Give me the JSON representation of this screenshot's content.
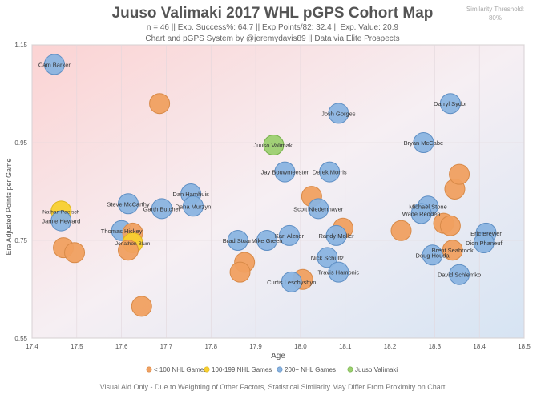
{
  "header": {
    "title": "Juuso Valimaki 2017 WHL pGPS Cohort Map",
    "stats": "n = 46 || Exp. Success%: 64.7 || Exp Points/82: 32.4 || Exp. Value: 20.9",
    "credit": "Chart and pGPS System by @jeremydavis89 || Data via Elite Prospects",
    "threshold_label": "Similarity Threshold:",
    "threshold_value": "80%"
  },
  "footer": "Visual Aid Only - Due to Weighting of Other Factors, Statistical Similarity May Differ From Proximity on Chart",
  "colors": {
    "lt100": "#f0a060",
    "g100_199": "#f8d030",
    "g200": "#8ab4e0",
    "valimaki": "#9cd070"
  },
  "chart_data": {
    "type": "scatter",
    "title": "Juuso Valimaki 2017 WHL pGPS Cohort Map",
    "xlabel": "Age",
    "ylabel": "Era Adjusted Points per Game",
    "xlim": [
      17.4,
      18.5
    ],
    "ylim": [
      0.55,
      1.15
    ],
    "xticks": [
      "17.4",
      "17.5",
      "17.6",
      "17.7",
      "17.8",
      "17.9",
      "18.0",
      "18.1",
      "18.2",
      "18.3",
      "18.4",
      "18.5"
    ],
    "yticks": [
      "0.55",
      "0.75",
      "0.95",
      "1.15"
    ],
    "legend": [
      {
        "key": "lt100",
        "label": "< 100 NHL Games"
      },
      {
        "key": "g100_199",
        "label": "100-199 NHL Games"
      },
      {
        "key": "g200",
        "label": "200+ NHL Games"
      },
      {
        "key": "valimaki",
        "label": "Juuso Valimaki"
      }
    ],
    "points": [
      {
        "name": "Cam Barker",
        "x": 17.45,
        "y": 1.11,
        "group": "g200"
      },
      {
        "name": "",
        "x": 17.685,
        "y": 1.03,
        "group": "lt100"
      },
      {
        "name": "Josh Gorges",
        "x": 18.085,
        "y": 1.01,
        "group": "g200"
      },
      {
        "name": "Darryl Sydor",
        "x": 18.335,
        "y": 1.03,
        "group": "g200"
      },
      {
        "name": "Juuso Valimaki",
        "x": 17.94,
        "y": 0.945,
        "group": "valimaki"
      },
      {
        "name": "Bryan McCabe",
        "x": 18.275,
        "y": 0.95,
        "group": "g200"
      },
      {
        "name": "Jay Bouwmeester",
        "x": 17.965,
        "y": 0.89,
        "group": "g200"
      },
      {
        "name": "Derek Morris",
        "x": 18.065,
        "y": 0.89,
        "group": "g200"
      },
      {
        "name": "",
        "x": 18.345,
        "y": 0.855,
        "group": "lt100"
      },
      {
        "name": "",
        "x": 18.355,
        "y": 0.885,
        "group": "lt100"
      },
      {
        "name": "",
        "x": 18.025,
        "y": 0.84,
        "group": "lt100"
      },
      {
        "name": "Dan Hamhuis",
        "x": 17.755,
        "y": 0.845,
        "group": "g200"
      },
      {
        "name": "Steve McCarthy",
        "x": 17.615,
        "y": 0.825,
        "group": "g200"
      },
      {
        "name": "Dana Murzyn",
        "x": 17.76,
        "y": 0.82,
        "group": "g200"
      },
      {
        "name": "Garth Butcher",
        "x": 17.69,
        "y": 0.815,
        "group": "g200"
      },
      {
        "name": "Nathan Paetsch",
        "x": 17.465,
        "y": 0.81,
        "group": "g100_199"
      },
      {
        "name": "Scott Niedermayer",
        "x": 18.04,
        "y": 0.815,
        "group": "g200"
      },
      {
        "name": "Michael Stone",
        "x": 18.285,
        "y": 0.82,
        "group": "g200"
      },
      {
        "name": "Wade Redden",
        "x": 18.27,
        "y": 0.805,
        "group": "g200"
      },
      {
        "name": "Jamie Heward",
        "x": 17.465,
        "y": 0.79,
        "group": "g200"
      },
      {
        "name": "",
        "x": 18.32,
        "y": 0.785,
        "group": "lt100"
      },
      {
        "name": "",
        "x": 18.335,
        "y": 0.78,
        "group": "lt100"
      },
      {
        "name": "",
        "x": 18.095,
        "y": 0.775,
        "group": "lt100"
      },
      {
        "name": "",
        "x": 18.225,
        "y": 0.77,
        "group": "lt100"
      },
      {
        "name": "Thomas Hickey",
        "x": 17.6,
        "y": 0.77,
        "group": "g200"
      },
      {
        "name": "",
        "x": 17.625,
        "y": 0.765,
        "group": "lt100"
      },
      {
        "name": "Randy Moller",
        "x": 18.08,
        "y": 0.76,
        "group": "g200"
      },
      {
        "name": "Karl Alzner",
        "x": 17.975,
        "y": 0.76,
        "group": "g200"
      },
      {
        "name": "Eric Brewer",
        "x": 18.415,
        "y": 0.765,
        "group": "g200"
      },
      {
        "name": "Brad Stuart",
        "x": 17.86,
        "y": 0.75,
        "group": "g200"
      },
      {
        "name": "Mike Green",
        "x": 17.925,
        "y": 0.75,
        "group": "g200"
      },
      {
        "name": "Jonathon Blum",
        "x": 17.625,
        "y": 0.745,
        "group": "g100_199"
      },
      {
        "name": "Dion Phaneuf",
        "x": 18.41,
        "y": 0.745,
        "group": "g200"
      },
      {
        "name": "",
        "x": 17.47,
        "y": 0.735,
        "group": "lt100"
      },
      {
        "name": "",
        "x": 17.495,
        "y": 0.725,
        "group": "lt100"
      },
      {
        "name": "",
        "x": 17.615,
        "y": 0.73,
        "group": "lt100"
      },
      {
        "name": "Brent Seabrook",
        "x": 18.34,
        "y": 0.73,
        "group": "lt100"
      },
      {
        "name": "Doug Houda",
        "x": 18.295,
        "y": 0.72,
        "group": "g200"
      },
      {
        "name": "Nick Schultz",
        "x": 18.06,
        "y": 0.715,
        "group": "g200"
      },
      {
        "name": "",
        "x": 17.875,
        "y": 0.705,
        "group": "lt100"
      },
      {
        "name": "",
        "x": 17.865,
        "y": 0.685,
        "group": "lt100"
      },
      {
        "name": "Travis Hamonic",
        "x": 18.085,
        "y": 0.685,
        "group": "g200"
      },
      {
        "name": "David Schlemko",
        "x": 18.355,
        "y": 0.68,
        "group": "g200"
      },
      {
        "name": "",
        "x": 18.005,
        "y": 0.67,
        "group": "lt100"
      },
      {
        "name": "Curtis Leschyshyn",
        "x": 17.98,
        "y": 0.665,
        "group": "g200"
      },
      {
        "name": "",
        "x": 17.645,
        "y": 0.615,
        "group": "lt100"
      }
    ]
  }
}
